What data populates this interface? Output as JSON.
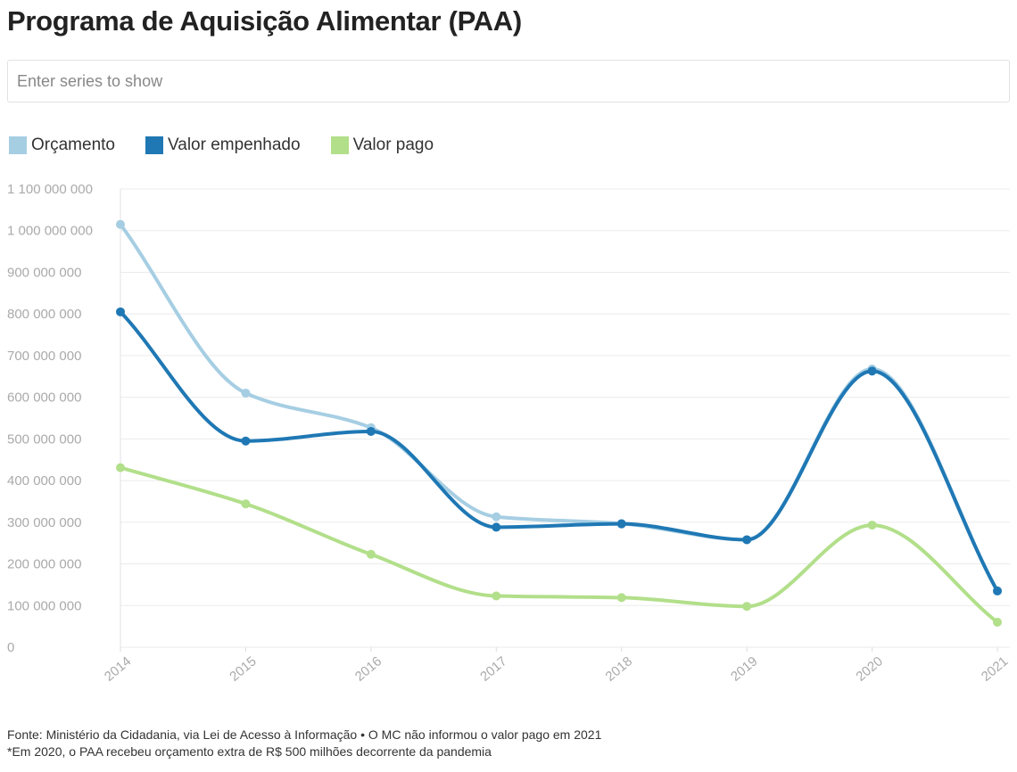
{
  "header": {
    "title": "Programa de Aquisição Alimentar (PAA)"
  },
  "search": {
    "placeholder": "Enter series to show"
  },
  "legend": [
    {
      "label": "Orçamento",
      "color": "#a6cee3"
    },
    {
      "label": "Valor empenhado",
      "color": "#1f78b4"
    },
    {
      "label": "Valor pago",
      "color": "#b2df8a"
    }
  ],
  "chart_data": {
    "type": "line",
    "title": "Programa de Aquisição Alimentar (PAA)",
    "x": [
      "2014",
      "2015",
      "2016",
      "2017",
      "2018",
      "2019",
      "2020",
      "2021"
    ],
    "ylim": [
      0,
      1100000000
    ],
    "yticks": [
      0,
      100000000,
      200000000,
      300000000,
      400000000,
      500000000,
      600000000,
      700000000,
      800000000,
      900000000,
      1000000000,
      1100000000
    ],
    "ytick_labels": [
      "0",
      "100 000 000",
      "200 000 000",
      "300 000 000",
      "400 000 000",
      "500 000 000",
      "600 000 000",
      "700 000 000",
      "800 000 000",
      "900 000 000",
      "1 000 000 000",
      "1 100 000 000"
    ],
    "grid": true,
    "series": [
      {
        "name": "Orçamento",
        "color": "#a6cee3",
        "values": [
          1015000000,
          610000000,
          527000000,
          313000000,
          297000000,
          258000000,
          668000000,
          135000000
        ]
      },
      {
        "name": "Valor empenhado",
        "color": "#1f78b4",
        "values": [
          805000000,
          495000000,
          518000000,
          288000000,
          296000000,
          258000000,
          663000000,
          135000000
        ]
      },
      {
        "name": "Valor pago",
        "color": "#b2df8a",
        "values": [
          431000000,
          344000000,
          223000000,
          123000000,
          119000000,
          98000000,
          293000000,
          60000000
        ]
      }
    ]
  },
  "footer": {
    "source": "Fonte: Ministério da Cidadania, via Lei de Acesso à Informação • O MC não informou o valor pago em 2021",
    "note": "*Em 2020, o PAA recebeu orçamento extra de R$ 500 milhões decorrente da pandemia"
  }
}
